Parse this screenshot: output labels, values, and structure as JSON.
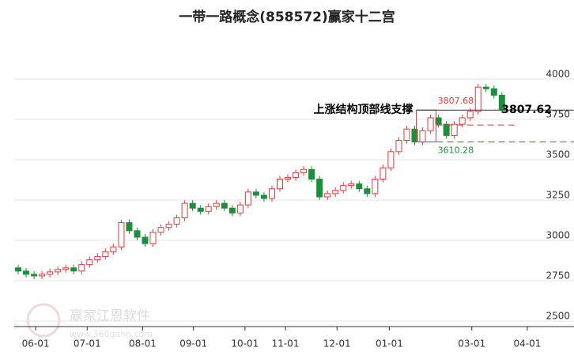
{
  "chart_data": {
    "type": "candlestick",
    "title": "一带一路概念(858572)赢家十二宫",
    "up_color": "#e4393c",
    "down_color": "#1a8f3c",
    "open": [
      2830,
      2810,
      2790,
      2780,
      2790,
      2805,
      2820,
      2830,
      2810,
      2850,
      2880,
      2900,
      2930,
      2960,
      3110,
      3060,
      3020,
      2980,
      3050,
      3080,
      3100,
      3140,
      3230,
      3200,
      3180,
      3210,
      3230,
      3200,
      3170,
      3220,
      3300,
      3280,
      3260,
      3320,
      3380,
      3390,
      3420,
      3440,
      3380,
      3270,
      3290,
      3310,
      3340,
      3350,
      3320,
      3290,
      3380,
      3450,
      3550,
      3620,
      3690,
      3610,
      3680,
      3760,
      3720,
      3650,
      3720,
      3760,
      3800,
      3950,
      3940,
      3900
    ],
    "high": [
      2850,
      2830,
      2810,
      2810,
      2825,
      2840,
      2850,
      2850,
      2870,
      2900,
      2920,
      2950,
      2980,
      3130,
      3130,
      3080,
      3040,
      3070,
      3100,
      3120,
      3160,
      3250,
      3250,
      3220,
      3230,
      3250,
      3250,
      3220,
      3240,
      3320,
      3320,
      3300,
      3340,
      3400,
      3410,
      3440,
      3460,
      3460,
      3400,
      3310,
      3330,
      3360,
      3370,
      3370,
      3340,
      3400,
      3470,
      3570,
      3640,
      3710,
      3710,
      3700,
      3780,
      3780,
      3740,
      3740,
      3780,
      3820,
      3970,
      3970,
      3960,
      3920
    ],
    "low": [
      2790,
      2770,
      2760,
      2760,
      2770,
      2785,
      2800,
      2790,
      2790,
      2830,
      2860,
      2880,
      2910,
      2940,
      3040,
      3000,
      2960,
      2960,
      3030,
      3060,
      3080,
      3120,
      3180,
      3160,
      3160,
      3190,
      3180,
      3150,
      3150,
      3200,
      3260,
      3240,
      3240,
      3300,
      3360,
      3370,
      3400,
      3360,
      3250,
      3250,
      3270,
      3290,
      3320,
      3300,
      3270,
      3270,
      3360,
      3430,
      3530,
      3600,
      3590,
      3590,
      3660,
      3700,
      3630,
      3630,
      3700,
      3740,
      3780,
      3920,
      3880,
      3790
    ],
    "close": [
      2810,
      2790,
      2780,
      2790,
      2805,
      2820,
      2830,
      2810,
      2850,
      2880,
      2900,
      2930,
      2960,
      3110,
      3060,
      3020,
      2980,
      3050,
      3080,
      3100,
      3140,
      3230,
      3200,
      3180,
      3210,
      3230,
      3200,
      3170,
      3220,
      3300,
      3280,
      3260,
      3320,
      3380,
      3390,
      3420,
      3440,
      3380,
      3270,
      3290,
      3310,
      3340,
      3350,
      3320,
      3290,
      3380,
      3450,
      3550,
      3620,
      3690,
      3610,
      3680,
      3760,
      3720,
      3650,
      3720,
      3760,
      3800,
      3950,
      3940,
      3900,
      3810
    ],
    "xlim": [
      -0.5,
      66.5
    ],
    "xticks": [
      {
        "value": 2.2,
        "label": "06-01"
      },
      {
        "value": 8.7,
        "label": "07-01"
      },
      {
        "value": 15.7,
        "label": "08-01"
      },
      {
        "value": 22.1,
        "label": "09-01"
      },
      {
        "value": 28.6,
        "label": "10-01"
      },
      {
        "value": 33.7,
        "label": "11-01"
      },
      {
        "value": 40.2,
        "label": "12-01"
      },
      {
        "value": 46.8,
        "label": "01-01"
      },
      {
        "value": 57.2,
        "label": "03-01"
      },
      {
        "value": 64.2,
        "label": "04-01"
      }
    ],
    "ylim": [
      2466,
      4294
    ],
    "yticks": [
      2500,
      2750,
      3000,
      3250,
      3500,
      3750,
      4000
    ],
    "grid": true,
    "support_text": "上涨结构顶部线支撑",
    "support_level": 3807.62,
    "box_high": 3807.68,
    "box_low": 3610.28,
    "mid_level": 3715,
    "watermark": "赢家江恩软件",
    "watermark_url": "www.360gann.com"
  }
}
